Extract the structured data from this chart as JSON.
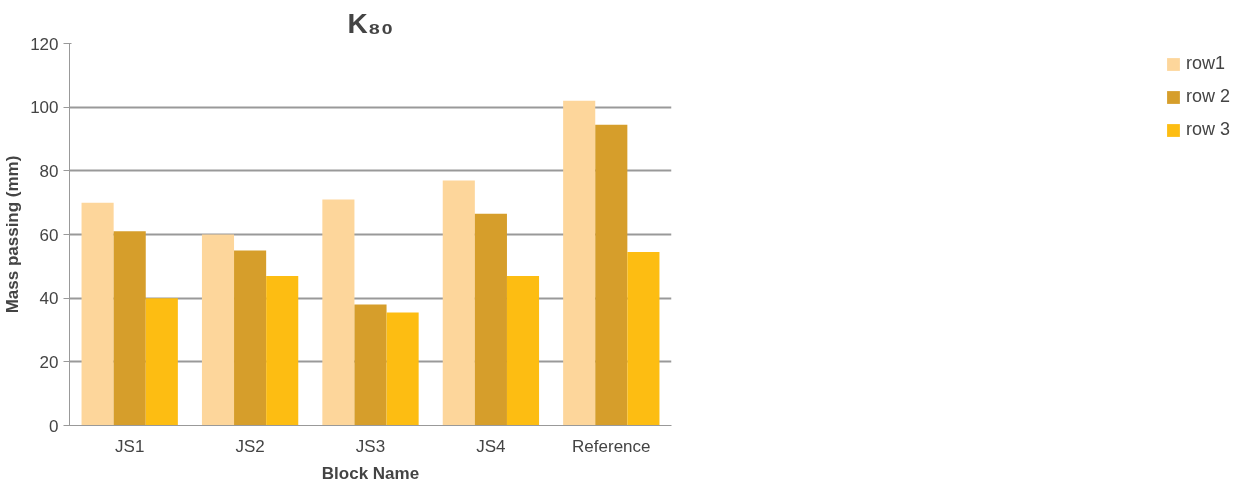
{
  "chart_data": {
    "type": "bar",
    "title": "K₈₀",
    "xlabel": "Block Name",
    "ylabel": "Mass passing (mm)",
    "categories": [
      "JS1",
      "JS2",
      "JS3",
      "JS4",
      "Reference"
    ],
    "series": [
      {
        "name": "row1",
        "color": "#fdd69b",
        "values": [
          70,
          60,
          71,
          77,
          102
        ]
      },
      {
        "name": "row 2",
        "color": "#d69e2b",
        "values": [
          61,
          55,
          38,
          66.5,
          94.5
        ]
      },
      {
        "name": "row 3",
        "color": "#fdbd12",
        "values": [
          40,
          47,
          35.5,
          47,
          54.5
        ]
      }
    ],
    "ylim": [
      0,
      120
    ],
    "yticks": [
      0,
      20,
      40,
      60,
      80,
      100,
      120
    ],
    "grid": "y",
    "legend": "right"
  }
}
